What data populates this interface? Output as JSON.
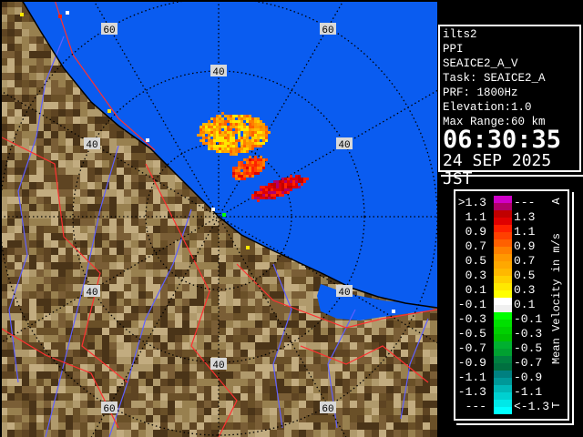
{
  "map": {
    "sea_color": "#0a5cf0",
    "ring_labels": {
      "inner": "40",
      "outer": "60"
    },
    "range_rings_km": [
      20,
      40,
      60
    ],
    "echo_colors": [
      "#ffe800",
      "#ffd000",
      "#ffb800",
      "#ffa800",
      "#ff9800",
      "#ff8000",
      "#ff6000",
      "#ff4000",
      "#ff2000",
      "#e00000",
      "#c00000",
      "#b0006a"
    ]
  },
  "info": {
    "lines": [
      "ilts2",
      "PPI",
      "SEAICE2_A_V",
      "Task: SEAICE2_A",
      "PRF: 1800Hz",
      "Elevation:1.0",
      "Max Range:60 km"
    ],
    "time": "06:30:35",
    "date": "24 SEP 2025 JST"
  },
  "legend": {
    "title": "Mean Velocity in m/s",
    "top_marker": "A",
    "bottom_marker": "T",
    "rows": [
      {
        "left": ">1.3",
        "right": "---",
        "colors": [
          "#d000c8",
          "#b0006a"
        ]
      },
      {
        "left": "1.1",
        "right": "1.3",
        "colors": [
          "#c00000",
          "#e00000"
        ]
      },
      {
        "left": "0.9",
        "right": "1.1",
        "colors": [
          "#ff2000",
          "#ff4000"
        ]
      },
      {
        "left": "0.7",
        "right": "0.9",
        "colors": [
          "#ff6000",
          "#ff8000"
        ]
      },
      {
        "left": "0.5",
        "right": "0.7",
        "colors": [
          "#ff9800",
          "#ffa800"
        ]
      },
      {
        "left": "0.3",
        "right": "0.5",
        "colors": [
          "#ffb800",
          "#ffd000"
        ]
      },
      {
        "left": "0.1",
        "right": "0.3",
        "colors": [
          "#ffe800",
          "#ffff00"
        ]
      },
      {
        "left": "-0.1",
        "right": "0.1",
        "colors": [
          "#ffffff",
          "#f0f0f0"
        ]
      },
      {
        "left": "-0.3",
        "right": "-0.1",
        "colors": [
          "#00ff00",
          "#00e000"
        ]
      },
      {
        "left": "-0.5",
        "right": "-0.3",
        "colors": [
          "#00d000",
          "#00c000"
        ]
      },
      {
        "left": "-0.7",
        "right": "-0.5",
        "colors": [
          "#00b030",
          "#00a030"
        ]
      },
      {
        "left": "-0.9",
        "right": "-0.7",
        "colors": [
          "#008040",
          "#007040"
        ]
      },
      {
        "left": "-1.1",
        "right": "-0.9",
        "colors": [
          "#008080",
          "#009898"
        ]
      },
      {
        "left": "-1.3",
        "right": "-1.1",
        "colors": [
          "#00b8b8",
          "#00d0d0"
        ]
      },
      {
        "left": "---",
        "right": "<-1.3",
        "colors": [
          "#00e8e8",
          "#00ffff"
        ]
      }
    ]
  }
}
